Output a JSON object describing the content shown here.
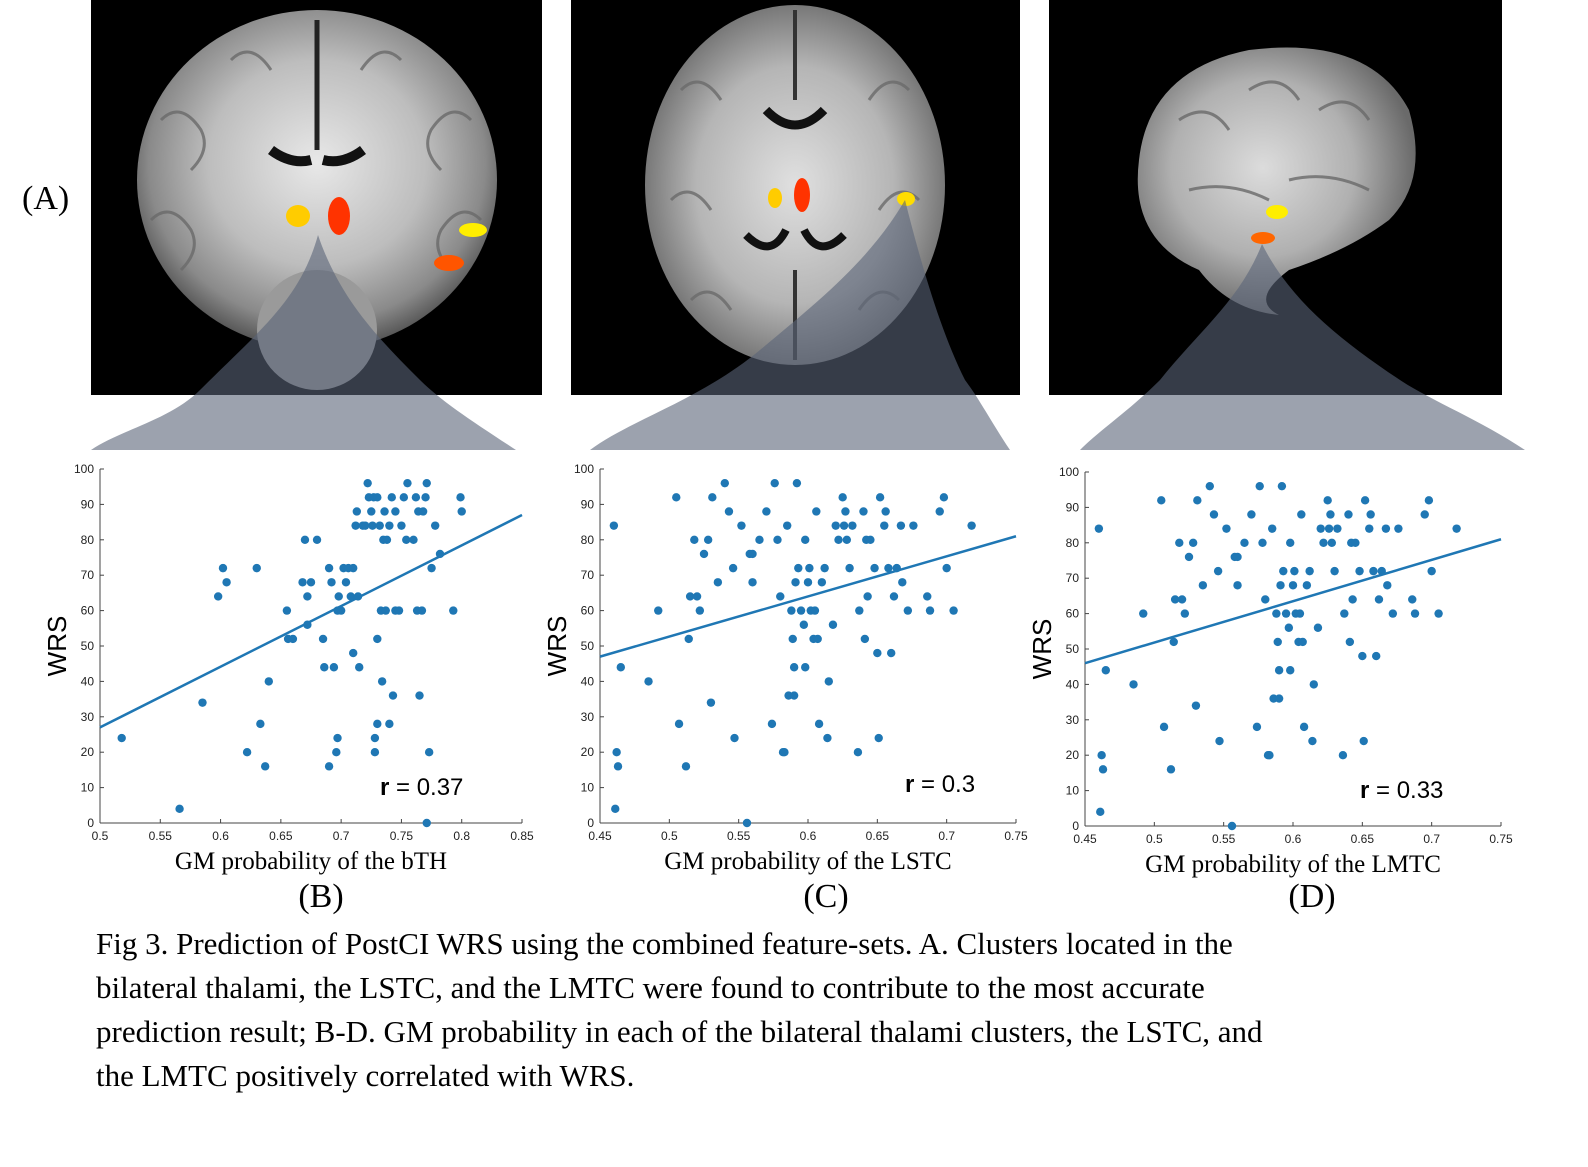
{
  "panel_a_label": "(A)",
  "panel_labels": [
    "(B)",
    "(C)",
    "(D)"
  ],
  "colors": {
    "point": "#1f77b4",
    "fit_line": "#1f77b4",
    "cluster_red": "#ff3300",
    "cluster_yellow": "#ffcc00",
    "cluster_orange": "#ff6600",
    "wedge": "#5a6478"
  },
  "chart_data": [
    {
      "type": "scatter",
      "xlabel": "GM probability of the bTH",
      "ylabel": "WRS",
      "annotation_bold": "r",
      "annotation_value": " = 0.37",
      "xlim": [
        0.5,
        0.85
      ],
      "ylim": [
        0,
        100
      ],
      "xticks": [
        0.5,
        0.55,
        0.6,
        0.65,
        0.7,
        0.75,
        0.8,
        0.85
      ],
      "xtick_labels": [
        "0.5",
        "0.55",
        "0.6",
        "0.65",
        "0.7",
        "0.75",
        "0.8",
        "0.85"
      ],
      "yticks": [
        0,
        10,
        20,
        30,
        40,
        50,
        60,
        70,
        80,
        90,
        100
      ],
      "fit_line": [
        [
          0.5,
          27
        ],
        [
          0.85,
          87
        ]
      ],
      "points": [
        [
          0.518,
          24
        ],
        [
          0.566,
          4
        ],
        [
          0.585,
          34
        ],
        [
          0.598,
          64
        ],
        [
          0.602,
          72
        ],
        [
          0.605,
          68
        ],
        [
          0.622,
          20
        ],
        [
          0.63,
          72
        ],
        [
          0.633,
          28
        ],
        [
          0.637,
          16
        ],
        [
          0.64,
          40
        ],
        [
          0.655,
          60
        ],
        [
          0.656,
          52
        ],
        [
          0.66,
          52
        ],
        [
          0.668,
          68
        ],
        [
          0.67,
          80
        ],
        [
          0.672,
          64
        ],
        [
          0.672,
          56
        ],
        [
          0.675,
          68
        ],
        [
          0.68,
          80
        ],
        [
          0.685,
          52
        ],
        [
          0.686,
          44
        ],
        [
          0.69,
          16
        ],
        [
          0.69,
          72
        ],
        [
          0.692,
          68
        ],
        [
          0.694,
          44
        ],
        [
          0.696,
          20
        ],
        [
          0.697,
          24
        ],
        [
          0.697,
          60
        ],
        [
          0.698,
          64
        ],
        [
          0.7,
          60
        ],
        [
          0.702,
          72
        ],
        [
          0.704,
          68
        ],
        [
          0.706,
          72
        ],
        [
          0.708,
          64
        ],
        [
          0.71,
          72
        ],
        [
          0.71,
          48
        ],
        [
          0.712,
          84
        ],
        [
          0.713,
          88
        ],
        [
          0.714,
          64
        ],
        [
          0.715,
          44
        ],
        [
          0.718,
          84
        ],
        [
          0.72,
          84
        ],
        [
          0.722,
          96
        ],
        [
          0.723,
          92
        ],
        [
          0.725,
          88
        ],
        [
          0.726,
          84
        ],
        [
          0.727,
          92
        ],
        [
          0.728,
          24
        ],
        [
          0.728,
          20
        ],
        [
          0.73,
          52
        ],
        [
          0.73,
          28
        ],
        [
          0.73,
          92
        ],
        [
          0.732,
          84
        ],
        [
          0.733,
          60
        ],
        [
          0.734,
          40
        ],
        [
          0.735,
          80
        ],
        [
          0.736,
          88
        ],
        [
          0.737,
          60
        ],
        [
          0.738,
          80
        ],
        [
          0.74,
          84
        ],
        [
          0.74,
          28
        ],
        [
          0.742,
          92
        ],
        [
          0.743,
          36
        ],
        [
          0.745,
          88
        ],
        [
          0.745,
          60
        ],
        [
          0.748,
          60
        ],
        [
          0.75,
          84
        ],
        [
          0.752,
          92
        ],
        [
          0.754,
          80
        ],
        [
          0.755,
          96
        ],
        [
          0.76,
          80
        ],
        [
          0.762,
          92
        ],
        [
          0.763,
          60
        ],
        [
          0.764,
          88
        ],
        [
          0.765,
          36
        ],
        [
          0.767,
          60
        ],
        [
          0.768,
          88
        ],
        [
          0.77,
          92
        ],
        [
          0.771,
          96
        ],
        [
          0.771,
          0
        ],
        [
          0.773,
          20
        ],
        [
          0.775,
          72
        ],
        [
          0.778,
          84
        ],
        [
          0.782,
          76
        ],
        [
          0.793,
          60
        ],
        [
          0.799,
          92
        ],
        [
          0.8,
          88
        ]
      ]
    },
    {
      "type": "scatter",
      "xlabel": "GM probability of the LSTC",
      "ylabel": "WRS",
      "annotation_bold": "r",
      "annotation_value": " = 0.3",
      "xlim": [
        0.45,
        0.75
      ],
      "ylim": [
        0,
        100
      ],
      "xticks": [
        0.45,
        0.5,
        0.55,
        0.6,
        0.65,
        0.7,
        0.75
      ],
      "xtick_labels": [
        "0.45",
        "0.5",
        "0.55",
        "0.6",
        "0.65",
        "0.7",
        "0.75"
      ],
      "yticks": [
        0,
        10,
        20,
        30,
        40,
        50,
        60,
        70,
        80,
        90,
        100
      ],
      "fit_line": [
        [
          0.45,
          47
        ],
        [
          0.75,
          81
        ]
      ],
      "points": [
        [
          0.46,
          84
        ],
        [
          0.461,
          4
        ],
        [
          0.462,
          20
        ],
        [
          0.463,
          16
        ],
        [
          0.465,
          44
        ],
        [
          0.485,
          40
        ],
        [
          0.492,
          60
        ],
        [
          0.505,
          92
        ],
        [
          0.507,
          28
        ],
        [
          0.512,
          16
        ],
        [
          0.514,
          52
        ],
        [
          0.515,
          64
        ],
        [
          0.518,
          80
        ],
        [
          0.52,
          64
        ],
        [
          0.522,
          60
        ],
        [
          0.525,
          76
        ],
        [
          0.528,
          80
        ],
        [
          0.53,
          34
        ],
        [
          0.531,
          92
        ],
        [
          0.535,
          68
        ],
        [
          0.54,
          96
        ],
        [
          0.543,
          88
        ],
        [
          0.546,
          72
        ],
        [
          0.547,
          24
        ],
        [
          0.552,
          84
        ],
        [
          0.556,
          0
        ],
        [
          0.558,
          76
        ],
        [
          0.56,
          76
        ],
        [
          0.56,
          68
        ],
        [
          0.565,
          80
        ],
        [
          0.57,
          88
        ],
        [
          0.574,
          28
        ],
        [
          0.576,
          96
        ],
        [
          0.578,
          80
        ],
        [
          0.58,
          64
        ],
        [
          0.582,
          20
        ],
        [
          0.583,
          20
        ],
        [
          0.585,
          84
        ],
        [
          0.586,
          36
        ],
        [
          0.588,
          60
        ],
        [
          0.589,
          52
        ],
        [
          0.59,
          36
        ],
        [
          0.59,
          44
        ],
        [
          0.591,
          68
        ],
        [
          0.592,
          96
        ],
        [
          0.593,
          72
        ],
        [
          0.595,
          60
        ],
        [
          0.597,
          56
        ],
        [
          0.598,
          80
        ],
        [
          0.598,
          44
        ],
        [
          0.6,
          68
        ],
        [
          0.601,
          72
        ],
        [
          0.602,
          60
        ],
        [
          0.604,
          52
        ],
        [
          0.605,
          60
        ],
        [
          0.606,
          88
        ],
        [
          0.607,
          52
        ],
        [
          0.608,
          28
        ],
        [
          0.61,
          68
        ],
        [
          0.612,
          72
        ],
        [
          0.614,
          24
        ],
        [
          0.615,
          40
        ],
        [
          0.618,
          56
        ],
        [
          0.62,
          84
        ],
        [
          0.622,
          80
        ],
        [
          0.625,
          92
        ],
        [
          0.626,
          84
        ],
        [
          0.627,
          88
        ],
        [
          0.628,
          80
        ],
        [
          0.63,
          72
        ],
        [
          0.632,
          84
        ],
        [
          0.636,
          20
        ],
        [
          0.637,
          60
        ],
        [
          0.64,
          88
        ],
        [
          0.641,
          52
        ],
        [
          0.642,
          80
        ],
        [
          0.643,
          64
        ],
        [
          0.645,
          80
        ],
        [
          0.648,
          72
        ],
        [
          0.65,
          48
        ],
        [
          0.651,
          24
        ],
        [
          0.652,
          92
        ],
        [
          0.655,
          84
        ],
        [
          0.656,
          88
        ],
        [
          0.658,
          72
        ],
        [
          0.66,
          48
        ],
        [
          0.662,
          64
        ],
        [
          0.664,
          72
        ],
        [
          0.667,
          84
        ],
        [
          0.668,
          68
        ],
        [
          0.672,
          60
        ],
        [
          0.676,
          84
        ],
        [
          0.686,
          64
        ],
        [
          0.688,
          60
        ],
        [
          0.695,
          88
        ],
        [
          0.698,
          92
        ],
        [
          0.7,
          72
        ],
        [
          0.705,
          60
        ],
        [
          0.718,
          84
        ]
      ]
    },
    {
      "type": "scatter",
      "xlabel": "GM probability of the LMTC",
      "ylabel": "WRS",
      "annotation_bold": "r",
      "annotation_value": " = 0.33",
      "xlim": [
        0.45,
        0.75
      ],
      "ylim": [
        0,
        100
      ],
      "xticks": [
        0.45,
        0.5,
        0.55,
        0.6,
        0.65,
        0.7,
        0.75
      ],
      "xtick_labels": [
        "0.45",
        "0.5",
        "0.55",
        "0.6",
        "0.65",
        "0.7",
        "0.75"
      ],
      "yticks": [
        0,
        10,
        20,
        30,
        40,
        50,
        60,
        70,
        80,
        90,
        100
      ],
      "fit_line": [
        [
          0.45,
          46
        ],
        [
          0.75,
          81
        ]
      ],
      "points": [
        [
          0.46,
          84
        ],
        [
          0.461,
          4
        ],
        [
          0.462,
          20
        ],
        [
          0.463,
          16
        ],
        [
          0.465,
          44
        ],
        [
          0.485,
          40
        ],
        [
          0.492,
          60
        ],
        [
          0.505,
          92
        ],
        [
          0.507,
          28
        ],
        [
          0.512,
          16
        ],
        [
          0.514,
          52
        ],
        [
          0.515,
          64
        ],
        [
          0.518,
          80
        ],
        [
          0.52,
          64
        ],
        [
          0.522,
          60
        ],
        [
          0.525,
          76
        ],
        [
          0.528,
          80
        ],
        [
          0.53,
          34
        ],
        [
          0.531,
          92
        ],
        [
          0.535,
          68
        ],
        [
          0.54,
          96
        ],
        [
          0.543,
          88
        ],
        [
          0.546,
          72
        ],
        [
          0.547,
          24
        ],
        [
          0.552,
          84
        ],
        [
          0.556,
          0
        ],
        [
          0.558,
          76
        ],
        [
          0.56,
          76
        ],
        [
          0.56,
          68
        ],
        [
          0.565,
          80
        ],
        [
          0.57,
          88
        ],
        [
          0.574,
          28
        ],
        [
          0.576,
          96
        ],
        [
          0.578,
          80
        ],
        [
          0.58,
          64
        ],
        [
          0.582,
          20
        ],
        [
          0.583,
          20
        ],
        [
          0.585,
          84
        ],
        [
          0.586,
          36
        ],
        [
          0.588,
          60
        ],
        [
          0.589,
          52
        ],
        [
          0.59,
          36
        ],
        [
          0.59,
          44
        ],
        [
          0.591,
          68
        ],
        [
          0.592,
          96
        ],
        [
          0.593,
          72
        ],
        [
          0.595,
          60
        ],
        [
          0.597,
          56
        ],
        [
          0.598,
          80
        ],
        [
          0.598,
          44
        ],
        [
          0.6,
          68
        ],
        [
          0.601,
          72
        ],
        [
          0.602,
          60
        ],
        [
          0.604,
          52
        ],
        [
          0.605,
          60
        ],
        [
          0.606,
          88
        ],
        [
          0.607,
          52
        ],
        [
          0.608,
          28
        ],
        [
          0.61,
          68
        ],
        [
          0.612,
          72
        ],
        [
          0.614,
          24
        ],
        [
          0.615,
          40
        ],
        [
          0.618,
          56
        ],
        [
          0.62,
          84
        ],
        [
          0.622,
          80
        ],
        [
          0.625,
          92
        ],
        [
          0.626,
          84
        ],
        [
          0.627,
          88
        ],
        [
          0.628,
          80
        ],
        [
          0.63,
          72
        ],
        [
          0.632,
          84
        ],
        [
          0.636,
          20
        ],
        [
          0.637,
          60
        ],
        [
          0.64,
          88
        ],
        [
          0.641,
          52
        ],
        [
          0.642,
          80
        ],
        [
          0.643,
          64
        ],
        [
          0.645,
          80
        ],
        [
          0.648,
          72
        ],
        [
          0.65,
          48
        ],
        [
          0.651,
          24
        ],
        [
          0.652,
          92
        ],
        [
          0.655,
          84
        ],
        [
          0.656,
          88
        ],
        [
          0.658,
          72
        ],
        [
          0.66,
          48
        ],
        [
          0.662,
          64
        ],
        [
          0.664,
          72
        ],
        [
          0.667,
          84
        ],
        [
          0.668,
          68
        ],
        [
          0.672,
          60
        ],
        [
          0.676,
          84
        ],
        [
          0.686,
          64
        ],
        [
          0.688,
          60
        ],
        [
          0.695,
          88
        ],
        [
          0.698,
          92
        ],
        [
          0.7,
          72
        ],
        [
          0.705,
          60
        ],
        [
          0.718,
          84
        ]
      ]
    }
  ],
  "caption": {
    "line1": "Fig 3. Prediction of PostCI WRS using the combined feature-sets. A. Clusters located in the",
    "line2": "bilateral thalami, the LSTC, and the LMTC were found to contribute to the most accurate",
    "line3": "prediction result; B-D. GM probability in each of the bilateral thalami clusters, the LSTC, and",
    "line4": "the LMTC positively correlated with WRS."
  }
}
